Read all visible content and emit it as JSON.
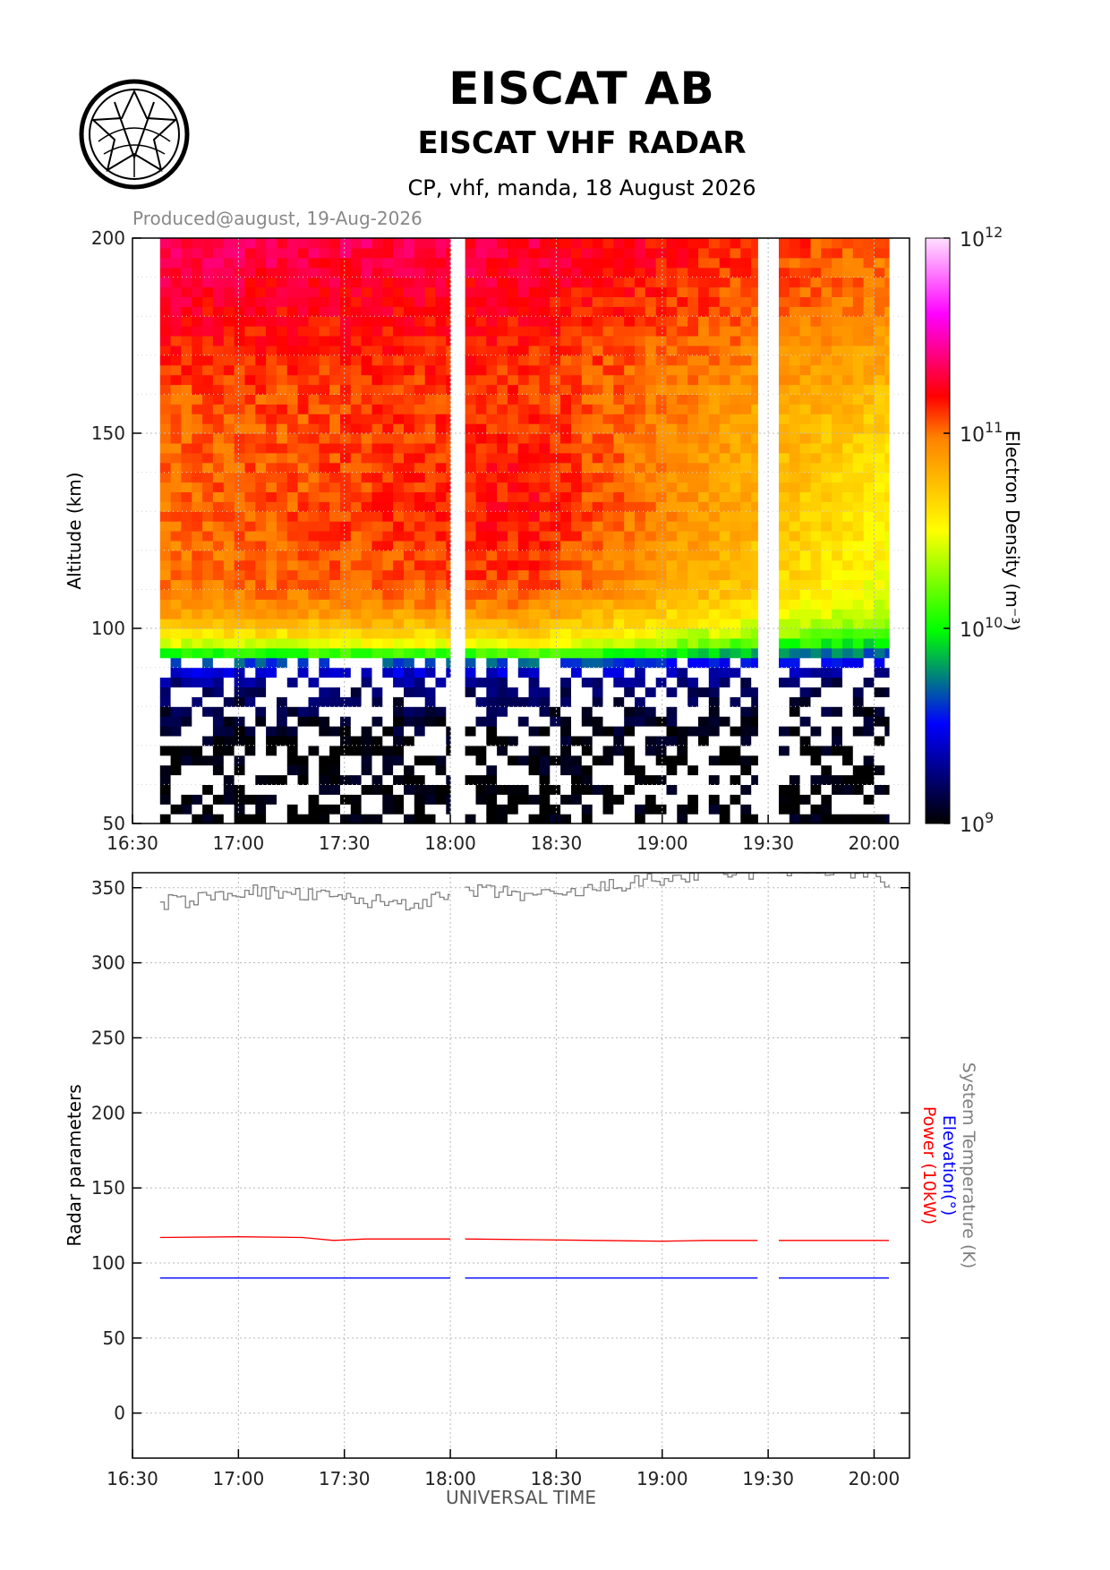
{
  "header": {
    "title": "EISCAT AB",
    "subtitle": "EISCAT VHF RADAR",
    "info": "CP, vhf, manda, 18 August 2026",
    "produced": "Produced@august, 19-Aug-2026"
  },
  "colors": {
    "power": "#ff0000",
    "elevation": "#0000ff",
    "system_temperature": "#808080",
    "grid": "#b8b8b8"
  },
  "chart_data": [
    {
      "type": "heatmap",
      "title": "",
      "xlabel": "",
      "ylabel": "Altitude (km)",
      "x_ticks": [
        "16:30",
        "17:00",
        "17:30",
        "18:00",
        "18:30",
        "19:00",
        "19:30",
        "20:00"
      ],
      "x_range_hours": [
        16.5,
        20.167
      ],
      "y_ticks": [
        50,
        100,
        150,
        200
      ],
      "ylim": [
        50,
        200
      ],
      "data_segments_hours": [
        [
          16.63,
          18.0
        ],
        [
          18.07,
          19.45
        ],
        [
          19.55,
          20.07
        ]
      ],
      "colorbar": {
        "label": "Electron Density (m⁻³)",
        "scale": "log",
        "range": [
          1000000000.0,
          1000000000000.0
        ],
        "tick_base": "10",
        "tick_exponents": [
          "9",
          "10",
          "11",
          "12"
        ]
      },
      "density_profile": {
        "altitude_km": [
          50,
          70,
          85,
          90,
          92,
          94,
          96,
          100,
          105,
          110,
          120,
          130,
          140,
          150,
          160,
          170,
          180,
          190,
          200
        ],
        "log10_density_start": [
          9.0,
          9.0,
          9.2,
          9.5,
          9.7,
          10.1,
          10.4,
          10.7,
          10.9,
          11.0,
          11.0,
          11.02,
          11.03,
          11.05,
          11.08,
          11.15,
          11.22,
          11.28,
          11.35
        ],
        "log10_density_mid": [
          9.0,
          9.0,
          9.2,
          9.5,
          9.8,
          10.2,
          10.5,
          10.75,
          10.95,
          11.08,
          11.15,
          11.2,
          11.18,
          11.15,
          11.13,
          11.15,
          11.2,
          11.25,
          11.3
        ],
        "log10_density_end": [
          9.0,
          9.0,
          9.1,
          9.3,
          9.5,
          9.7,
          9.9,
          10.2,
          10.35,
          10.45,
          10.5,
          10.55,
          10.6,
          10.65,
          10.75,
          10.85,
          10.95,
          11.0,
          11.05
        ]
      }
    },
    {
      "type": "line",
      "title": "",
      "xlabel": "UNIVERSAL TIME",
      "ylabel": "Radar parameters",
      "x_ticks": [
        "16:30",
        "17:00",
        "17:30",
        "18:00",
        "18:30",
        "19:00",
        "19:30",
        "20:00"
      ],
      "y_ticks": [
        0,
        50,
        100,
        150,
        200,
        250,
        300,
        350
      ],
      "ylim": [
        -30,
        360
      ],
      "series": [
        {
          "name": "System Temperature (K)",
          "color": "#808080",
          "style": "step",
          "segments": [
            {
              "x": [
                16.63,
                16.8,
                17.0,
                17.2,
                17.4,
                17.6,
                17.8,
                18.0
              ],
              "y": [
                340,
                342,
                348,
                346,
                344,
                341,
                340,
                343
              ]
            },
            {
              "x": [
                18.07,
                18.3,
                18.5,
                18.7,
                18.9,
                19.1,
                19.3,
                19.45
              ],
              "y": [
                348,
                346,
                344,
                350,
                354,
                357,
                360,
                360
              ]
            },
            {
              "x": [
                19.55,
                19.8,
                20.0,
                20.07
              ],
              "y": [
                362,
                362,
                358,
                350
              ]
            }
          ]
        },
        {
          "name": "Elevation(°)",
          "color": "#0000ff",
          "style": "line",
          "segments": [
            {
              "x": [
                16.63,
                18.0
              ],
              "y": [
                90,
                90
              ]
            },
            {
              "x": [
                18.07,
                19.45
              ],
              "y": [
                90,
                90
              ]
            },
            {
              "x": [
                19.55,
                20.07
              ],
              "y": [
                90,
                90
              ]
            }
          ]
        },
        {
          "name": "Power (10kW)",
          "color": "#ff0000",
          "style": "line",
          "segments": [
            {
              "x": [
                16.63,
                17.0,
                17.3,
                17.45,
                17.6,
                18.0
              ],
              "y": [
                117,
                117.5,
                117,
                115,
                116,
                116
              ]
            },
            {
              "x": [
                18.07,
                18.4,
                18.7,
                19.0,
                19.2,
                19.45
              ],
              "y": [
                116,
                115.5,
                115,
                114.5,
                115,
                115
              ]
            },
            {
              "x": [
                19.55,
                19.8,
                20.07
              ],
              "y": [
                115,
                115,
                115
              ]
            }
          ]
        }
      ]
    }
  ]
}
